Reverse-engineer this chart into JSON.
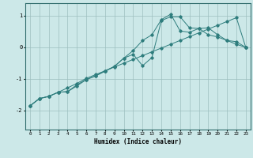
{
  "xlabel": "Humidex (Indice chaleur)",
  "bg_color": "#cce8e8",
  "grid_color": "#9dbfbf",
  "line_color": "#2e7d7d",
  "xlim": [
    -0.5,
    23.5
  ],
  "ylim": [
    -2.6,
    1.4
  ],
  "xticks": [
    0,
    1,
    2,
    3,
    4,
    5,
    6,
    7,
    8,
    9,
    10,
    11,
    12,
    13,
    14,
    15,
    16,
    17,
    18,
    19,
    20,
    21,
    22,
    23
  ],
  "yticks": [
    -2,
    -1,
    0,
    1
  ],
  "line1_x": [
    0,
    1,
    2,
    3,
    4,
    5,
    6,
    7,
    8,
    9,
    10,
    11,
    12,
    13,
    14,
    15,
    16,
    17,
    18,
    19,
    20,
    21,
    22,
    23
  ],
  "line1_y": [
    -1.85,
    -1.62,
    -1.55,
    -1.42,
    -1.28,
    -1.14,
    -0.98,
    -0.86,
    -0.74,
    -0.62,
    -0.5,
    -0.38,
    -0.26,
    -0.14,
    -0.02,
    0.1,
    0.22,
    0.34,
    0.46,
    0.58,
    0.7,
    0.82,
    0.94,
    0.0
  ],
  "line2_x": [
    0,
    1,
    2,
    3,
    4,
    5,
    6,
    7,
    8,
    9,
    10,
    11,
    12,
    13,
    14,
    15,
    16,
    17,
    18,
    19,
    20,
    21,
    22,
    23
  ],
  "line2_y": [
    -1.85,
    -1.62,
    -1.55,
    -1.42,
    -1.4,
    -1.22,
    -1.02,
    -0.9,
    -0.75,
    -0.6,
    -0.34,
    -0.22,
    -0.58,
    -0.32,
    0.85,
    0.97,
    0.97,
    0.62,
    0.6,
    0.4,
    0.33,
    0.22,
    0.1,
    0.0
  ],
  "line3_x": [
    0,
    1,
    2,
    3,
    4,
    5,
    6,
    7,
    8,
    9,
    10,
    11,
    12,
    13,
    14,
    15,
    16,
    17,
    18,
    19,
    20,
    21,
    22,
    23
  ],
  "line3_y": [
    -1.85,
    -1.62,
    -1.55,
    -1.42,
    -1.4,
    -1.18,
    -1.02,
    -0.9,
    -0.75,
    -0.6,
    -0.34,
    -0.1,
    0.22,
    0.4,
    0.88,
    1.05,
    0.52,
    0.48,
    0.6,
    0.62,
    0.4,
    0.22,
    0.18,
    0.0
  ]
}
